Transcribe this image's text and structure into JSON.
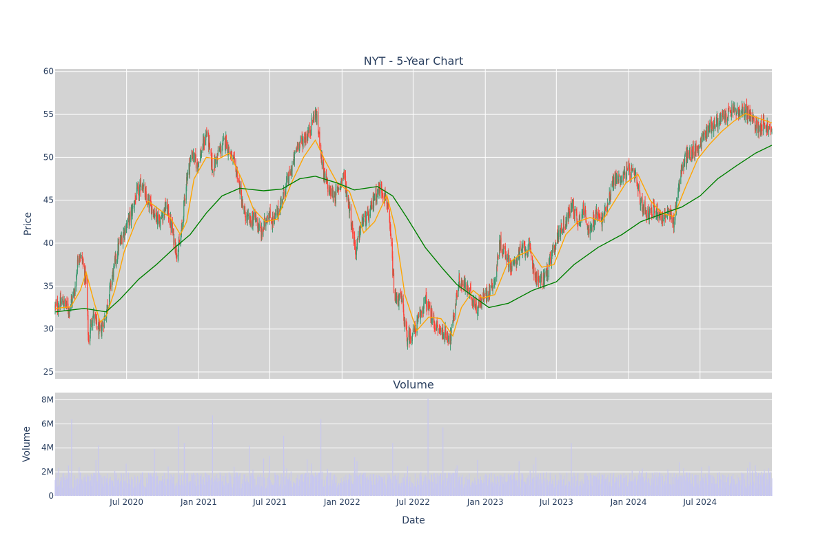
{
  "chart_data": [
    {
      "type": "candlestick",
      "title": "NYT - 5-Year Chart",
      "ylabel": "Price",
      "ylim": [
        24.2,
        60.3
      ],
      "yticks": [
        25,
        30,
        35,
        40,
        45,
        50,
        55,
        60
      ],
      "xlim": [
        "2020-01-01",
        "2024-12-31"
      ],
      "grid": true,
      "up_color": "#3d9970",
      "down_color": "#ff4136",
      "background": "#d3d3d3",
      "close_path": [
        [
          "2020-01-02",
          32.5
        ],
        [
          "2020-01-20",
          33.2
        ],
        [
          "2020-02-05",
          32.3
        ],
        [
          "2020-02-20",
          34.5
        ],
        [
          "2020-03-01",
          39.0
        ],
        [
          "2020-03-10",
          38.0
        ],
        [
          "2020-03-20",
          35.5
        ],
        [
          "2020-03-26",
          28.5
        ],
        [
          "2020-04-05",
          32.0
        ],
        [
          "2020-04-15",
          30.5
        ],
        [
          "2020-04-25",
          29.5
        ],
        [
          "2020-05-10",
          32.0
        ],
        [
          "2020-05-25",
          36.0
        ],
        [
          "2020-06-10",
          39.5
        ],
        [
          "2020-06-25",
          41.5
        ],
        [
          "2020-07-10",
          43.0
        ],
        [
          "2020-07-25",
          45.5
        ],
        [
          "2020-08-10",
          47.0
        ],
        [
          "2020-08-20",
          45.0
        ],
        [
          "2020-09-05",
          44.0
        ],
        [
          "2020-09-25",
          42.5
        ],
        [
          "2020-10-10",
          44.5
        ],
        [
          "2020-10-25",
          41.5
        ],
        [
          "2020-11-05",
          39.0
        ],
        [
          "2020-11-15",
          40.0
        ],
        [
          "2020-12-01",
          47.5
        ],
        [
          "2020-12-15",
          50.5
        ],
        [
          "2020-12-28",
          49.0
        ],
        [
          "2021-01-10",
          51.0
        ],
        [
          "2021-01-22",
          53.0
        ],
        [
          "2021-02-05",
          48.5
        ],
        [
          "2021-02-20",
          50.5
        ],
        [
          "2021-03-10",
          52.0
        ],
        [
          "2021-03-25",
          50.0
        ],
        [
          "2021-04-10",
          48.0
        ],
        [
          "2021-04-25",
          43.5
        ],
        [
          "2021-05-10",
          42.5
        ],
        [
          "2021-05-25",
          43.0
        ],
        [
          "2021-06-10",
          41.0
        ],
        [
          "2021-06-25",
          43.5
        ],
        [
          "2021-07-10",
          42.5
        ],
        [
          "2021-07-25",
          44.0
        ],
        [
          "2021-08-10",
          46.5
        ],
        [
          "2021-08-25",
          48.5
        ],
        [
          "2021-09-10",
          51.5
        ],
        [
          "2021-09-25",
          52.0
        ],
        [
          "2021-10-10",
          53.0
        ],
        [
          "2021-10-25",
          55.5
        ],
        [
          "2021-11-05",
          52.0
        ],
        [
          "2021-11-15",
          48.0
        ],
        [
          "2021-11-30",
          46.0
        ],
        [
          "2021-12-15",
          45.5
        ],
        [
          "2022-01-05",
          48.0
        ],
        [
          "2022-01-20",
          44.0
        ],
        [
          "2022-02-05",
          39.0
        ],
        [
          "2022-02-20",
          42.5
        ],
        [
          "2022-03-10",
          43.0
        ],
        [
          "2022-03-25",
          45.5
        ],
        [
          "2022-04-10",
          46.5
        ],
        [
          "2022-04-25",
          45.0
        ],
        [
          "2022-05-05",
          40.5
        ],
        [
          "2022-05-15",
          33.5
        ],
        [
          "2022-06-01",
          33.5
        ],
        [
          "2022-06-15",
          29.0
        ],
        [
          "2022-07-01",
          29.5
        ],
        [
          "2022-07-15",
          31.0
        ],
        [
          "2022-08-01",
          33.5
        ],
        [
          "2022-08-15",
          31.5
        ],
        [
          "2022-09-01",
          30.0
        ],
        [
          "2022-09-20",
          29.5
        ],
        [
          "2022-10-05",
          29.0
        ],
        [
          "2022-10-25",
          35.5
        ],
        [
          "2022-11-10",
          35.0
        ],
        [
          "2022-11-25",
          34.0
        ],
        [
          "2022-12-10",
          32.5
        ],
        [
          "2022-12-25",
          33.5
        ],
        [
          "2023-01-10",
          34.5
        ],
        [
          "2023-01-28",
          36.0
        ],
        [
          "2023-02-05",
          40.0
        ],
        [
          "2023-02-20",
          39.0
        ],
        [
          "2023-03-10",
          37.0
        ],
        [
          "2023-03-25",
          38.5
        ],
        [
          "2023-04-10",
          39.5
        ],
        [
          "2023-04-25",
          39.0
        ],
        [
          "2023-05-10",
          36.0
        ],
        [
          "2023-05-25",
          35.5
        ],
        [
          "2023-06-10",
          37.0
        ],
        [
          "2023-06-25",
          39.5
        ],
        [
          "2023-07-10",
          41.5
        ],
        [
          "2023-07-25",
          42.5
        ],
        [
          "2023-08-10",
          44.5
        ],
        [
          "2023-08-25",
          42.5
        ],
        [
          "2023-09-10",
          44.0
        ],
        [
          "2023-09-25",
          41.0
        ],
        [
          "2023-10-10",
          43.5
        ],
        [
          "2023-10-25",
          42.5
        ],
        [
          "2023-11-10",
          45.0
        ],
        [
          "2023-11-25",
          47.5
        ],
        [
          "2023-12-10",
          47.5
        ],
        [
          "2024-01-01",
          48.5
        ],
        [
          "2024-01-20",
          47.5
        ],
        [
          "2024-02-01",
          44.5
        ],
        [
          "2024-02-20",
          43.5
        ],
        [
          "2024-03-10",
          44.0
        ],
        [
          "2024-03-25",
          43.0
        ],
        [
          "2024-04-10",
          43.5
        ],
        [
          "2024-04-25",
          42.5
        ],
        [
          "2024-05-10",
          47.5
        ],
        [
          "2024-05-25",
          50.0
        ],
        [
          "2024-06-10",
          50.5
        ],
        [
          "2024-06-25",
          51.0
        ],
        [
          "2024-07-10",
          52.5
        ],
        [
          "2024-07-25",
          53.5
        ],
        [
          "2024-08-10",
          54.0
        ],
        [
          "2024-08-25",
          54.5
        ],
        [
          "2024-09-10",
          55.0
        ],
        [
          "2024-09-25",
          55.5
        ],
        [
          "2024-10-10",
          55.0
        ],
        [
          "2024-10-25",
          55.5
        ],
        [
          "2024-11-10",
          54.5
        ],
        [
          "2024-11-25",
          53.5
        ],
        [
          "2024-12-10",
          54.0
        ],
        [
          "2024-12-31",
          52.8
        ]
      ],
      "ma_short": {
        "color": "#ffa500",
        "points": [
          [
            "2020-01-02",
            32.4
          ],
          [
            "2020-02-10",
            32.6
          ],
          [
            "2020-03-05",
            34.5
          ],
          [
            "2020-03-20",
            36.6
          ],
          [
            "2020-04-10",
            33.0
          ],
          [
            "2020-04-25",
            30.8
          ],
          [
            "2020-05-10",
            31.5
          ],
          [
            "2020-06-01",
            34.5
          ],
          [
            "2020-06-25",
            39.0
          ],
          [
            "2020-07-25",
            42.5
          ],
          [
            "2020-08-25",
            44.9
          ],
          [
            "2020-09-20",
            44.0
          ],
          [
            "2020-10-20",
            43.0
          ],
          [
            "2020-11-15",
            41.0
          ],
          [
            "2020-12-01",
            42.5
          ],
          [
            "2020-12-20",
            47.5
          ],
          [
            "2021-01-20",
            50.0
          ],
          [
            "2021-02-20",
            49.8
          ],
          [
            "2021-03-20",
            50.5
          ],
          [
            "2021-04-20",
            47.5
          ],
          [
            "2021-05-20",
            44.0
          ],
          [
            "2021-06-20",
            42.5
          ],
          [
            "2021-07-20",
            42.8
          ],
          [
            "2021-08-25",
            47.0
          ],
          [
            "2021-09-25",
            50.0
          ],
          [
            "2021-10-25",
            52.0
          ],
          [
            "2021-11-20",
            49.5
          ],
          [
            "2021-12-20",
            47.0
          ],
          [
            "2022-01-20",
            46.0
          ],
          [
            "2022-02-25",
            41.2
          ],
          [
            "2022-03-25",
            42.5
          ],
          [
            "2022-04-25",
            45.6
          ],
          [
            "2022-05-15",
            42.0
          ],
          [
            "2022-06-10",
            34.0
          ],
          [
            "2022-07-10",
            29.8
          ],
          [
            "2022-08-10",
            31.4
          ],
          [
            "2022-09-10",
            31.2
          ],
          [
            "2022-10-10",
            29.2
          ],
          [
            "2022-11-01",
            32.5
          ],
          [
            "2022-12-01",
            34.5
          ],
          [
            "2022-12-25",
            33.6
          ],
          [
            "2023-01-25",
            34.0
          ],
          [
            "2023-02-25",
            37.5
          ],
          [
            "2023-03-25",
            38.5
          ],
          [
            "2023-04-25",
            39.2
          ],
          [
            "2023-05-25",
            37.2
          ],
          [
            "2023-06-25",
            37.5
          ],
          [
            "2023-07-25",
            41.0
          ],
          [
            "2023-08-25",
            42.5
          ],
          [
            "2023-09-25",
            43.0
          ],
          [
            "2023-10-25",
            42.5
          ],
          [
            "2023-11-25",
            44.8
          ],
          [
            "2023-12-25",
            47.0
          ],
          [
            "2024-01-25",
            48.0
          ],
          [
            "2024-02-25",
            45.0
          ],
          [
            "2024-03-25",
            43.5
          ],
          [
            "2024-04-25",
            43.1
          ],
          [
            "2024-05-25",
            46.5
          ],
          [
            "2024-06-25",
            49.8
          ],
          [
            "2024-07-25",
            51.5
          ],
          [
            "2024-08-25",
            53.0
          ],
          [
            "2024-09-25",
            54.2
          ],
          [
            "2024-10-25",
            55.1
          ],
          [
            "2024-11-25",
            54.6
          ],
          [
            "2024-12-31",
            54.0
          ]
        ]
      },
      "ma_long": {
        "color": "#008000",
        "points": [
          [
            "2020-01-02",
            32.0
          ],
          [
            "2020-03-15",
            32.4
          ],
          [
            "2020-05-10",
            32.0
          ],
          [
            "2020-06-15",
            33.5
          ],
          [
            "2020-08-01",
            35.8
          ],
          [
            "2020-09-15",
            37.5
          ],
          [
            "2020-11-01",
            39.5
          ],
          [
            "2020-12-10",
            41.0
          ],
          [
            "2021-01-20",
            43.5
          ],
          [
            "2021-03-01",
            45.5
          ],
          [
            "2021-04-15",
            46.4
          ],
          [
            "2021-06-15",
            46.1
          ],
          [
            "2021-08-01",
            46.3
          ],
          [
            "2021-09-15",
            47.5
          ],
          [
            "2021-10-25",
            47.8
          ],
          [
            "2021-12-20",
            47.0
          ],
          [
            "2022-02-01",
            46.2
          ],
          [
            "2022-04-01",
            46.6
          ],
          [
            "2022-05-10",
            45.5
          ],
          [
            "2022-06-15",
            43.0
          ],
          [
            "2022-08-01",
            39.5
          ],
          [
            "2022-09-15",
            37.0
          ],
          [
            "2022-10-20",
            35.2
          ],
          [
            "2022-12-01",
            33.8
          ],
          [
            "2023-01-10",
            32.5
          ],
          [
            "2023-03-01",
            33.0
          ],
          [
            "2023-05-01",
            34.5
          ],
          [
            "2023-07-01",
            35.5
          ],
          [
            "2023-08-15",
            37.5
          ],
          [
            "2023-10-15",
            39.5
          ],
          [
            "2023-12-15",
            41.0
          ],
          [
            "2024-02-01",
            42.5
          ],
          [
            "2024-04-01",
            43.5
          ],
          [
            "2024-05-15",
            44.2
          ],
          [
            "2024-07-01",
            45.5
          ],
          [
            "2024-08-15",
            47.5
          ],
          [
            "2024-10-01",
            49.0
          ],
          [
            "2024-11-20",
            50.5
          ],
          [
            "2024-12-31",
            51.4
          ]
        ]
      }
    },
    {
      "type": "bar",
      "title": "Volume",
      "xlabel": "Date",
      "ylabel": "Volume",
      "ylim": [
        0,
        8600000
      ],
      "yticks": [
        0,
        2000000,
        4000000,
        6000000,
        8000000
      ],
      "ytick_labels": [
        "0",
        "2M",
        "4M",
        "6M",
        "8M"
      ],
      "xticks": [
        "2020-07-01",
        "2021-01-01",
        "2021-07-01",
        "2022-01-01",
        "2022-07-01",
        "2023-01-01",
        "2023-07-01",
        "2024-01-01",
        "2024-07-01"
      ],
      "xtick_labels": [
        "Jul 2020",
        "Jan 2021",
        "Jul 2021",
        "Jan 2022",
        "Jul 2022",
        "Jan 2023",
        "Jul 2023",
        "Jan 2024",
        "Jul 2024"
      ],
      "bar_color": "#c7c7f0",
      "spikes": [
        [
          "2020-02-12",
          6400000
        ],
        [
          "2020-04-20",
          4200000
        ],
        [
          "2020-09-10",
          3900000
        ],
        [
          "2020-11-10",
          5800000
        ],
        [
          "2020-11-25",
          4400000
        ],
        [
          "2021-02-05",
          6700000
        ],
        [
          "2021-05-10",
          4200000
        ],
        [
          "2021-08-05",
          5000000
        ],
        [
          "2021-11-08",
          6400000
        ],
        [
          "2022-02-05",
          4200000
        ],
        [
          "2022-05-10",
          4400000
        ],
        [
          "2022-08-08",
          8100000
        ],
        [
          "2022-09-15",
          5700000
        ],
        [
          "2023-02-05",
          4000000
        ],
        [
          "2023-05-10",
          3200000
        ],
        [
          "2023-08-08",
          4400000
        ],
        [
          "2023-11-05",
          3300000
        ],
        [
          "2024-02-10",
          3300000
        ],
        [
          "2024-05-10",
          2800000
        ],
        [
          "2024-11-05",
          2800000
        ],
        [
          "2024-12-15",
          2900000
        ]
      ]
    }
  ]
}
